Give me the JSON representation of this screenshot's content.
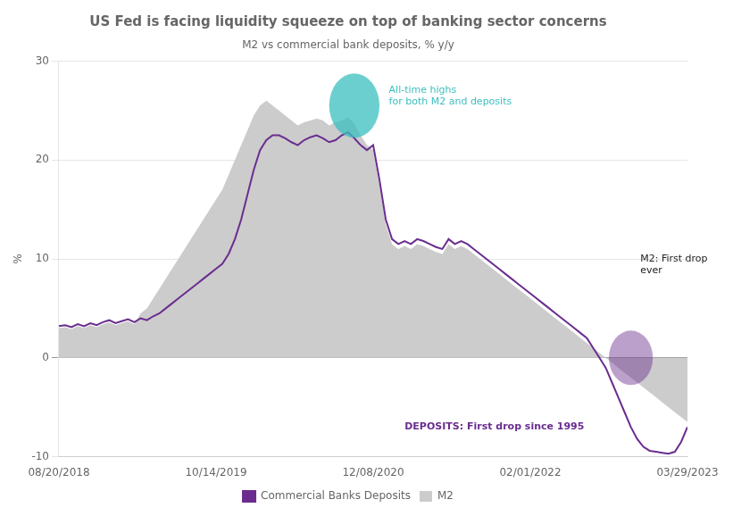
{
  "chart_data": {
    "type": "line",
    "title": "US Fed is facing liquidity squeeze on top of banking sector concerns",
    "subtitle": "M2 vs commercial bank deposits, % y/y",
    "y_label": "%",
    "categories": [
      "08/20/2018",
      null,
      null,
      null,
      null,
      null,
      null,
      null,
      null,
      null,
      null,
      null,
      null,
      null,
      null,
      null,
      null,
      null,
      null,
      null,
      null,
      null,
      null,
      null,
      null,
      "10/14/2019",
      null,
      null,
      null,
      null,
      null,
      null,
      null,
      null,
      null,
      null,
      null,
      null,
      null,
      null,
      null,
      null,
      null,
      null,
      null,
      null,
      null,
      null,
      null,
      null,
      "12/08/2020",
      null,
      null,
      null,
      null,
      null,
      null,
      null,
      null,
      null,
      null,
      null,
      null,
      null,
      null,
      null,
      null,
      null,
      null,
      null,
      null,
      null,
      null,
      null,
      null,
      "02/01/2022",
      null,
      null,
      null,
      null,
      null,
      null,
      null,
      null,
      null,
      null,
      null,
      null,
      null,
      null,
      null,
      null,
      null,
      null,
      null,
      null,
      null,
      null,
      null,
      null,
      "03/29/2023"
    ],
    "series": [
      {
        "name": "Commercial Banks Deposits",
        "type": "line",
        "color": "#6a2d8f",
        "values": [
          3.2,
          3.3,
          3.1,
          3.4,
          3.2,
          3.5,
          3.3,
          3.6,
          3.8,
          3.5,
          3.7,
          3.9,
          3.6,
          4.0,
          3.8,
          4.2,
          4.5,
          5.0,
          5.5,
          6.0,
          6.5,
          7.0,
          7.5,
          8.0,
          8.5,
          9.0,
          9.5,
          10.5,
          12.0,
          14.0,
          16.5,
          19.0,
          21.0,
          22.0,
          22.5,
          22.5,
          22.2,
          21.8,
          21.5,
          22.0,
          22.3,
          22.5,
          22.2,
          21.8,
          22.0,
          22.5,
          22.8,
          22.2,
          21.5,
          21.0,
          21.5,
          18.0,
          14.0,
          12.0,
          11.5,
          11.8,
          11.5,
          12.0,
          11.8,
          11.5,
          11.2,
          11.0,
          12.0,
          11.5,
          11.8,
          11.5,
          11.0,
          10.5,
          10.0,
          9.5,
          9.0,
          8.5,
          8.0,
          7.5,
          7.0,
          6.5,
          6.0,
          5.5,
          5.0,
          4.5,
          4.0,
          3.5,
          3.0,
          2.5,
          2.0,
          1.0,
          0.0,
          -1.0,
          -2.5,
          -4.0,
          -5.5,
          -7.0,
          -8.2,
          -9.0,
          -9.4,
          -9.5,
          -9.6,
          -9.7,
          -9.5,
          -8.5,
          -7.0
        ]
      },
      {
        "name": "M2",
        "type": "area",
        "color": "#cccccc",
        "values": [
          3.0,
          3.1,
          2.9,
          3.2,
          3.0,
          3.3,
          3.1,
          3.4,
          3.6,
          3.3,
          3.5,
          3.7,
          3.4,
          4.5,
          5.0,
          6.0,
          7.0,
          8.0,
          9.0,
          10.0,
          11.0,
          12.0,
          13.0,
          14.0,
          15.0,
          16.0,
          17.0,
          18.5,
          20.0,
          21.5,
          23.0,
          24.5,
          25.5,
          26.0,
          25.5,
          25.0,
          24.5,
          24.0,
          23.5,
          23.8,
          24.0,
          24.2,
          24.0,
          23.5,
          23.8,
          24.0,
          24.3,
          23.7,
          22.5,
          21.5,
          21.0,
          17.5,
          13.5,
          11.5,
          11.0,
          11.3,
          11.0,
          11.5,
          11.3,
          11.0,
          10.7,
          10.5,
          11.5,
          11.0,
          11.3,
          11.0,
          10.5,
          10.0,
          9.5,
          9.0,
          8.5,
          8.0,
          7.5,
          7.0,
          6.5,
          6.0,
          5.5,
          5.0,
          4.5,
          4.0,
          3.5,
          3.0,
          2.5,
          2.0,
          1.5,
          1.0,
          0.5,
          0.0,
          -0.5,
          -1.0,
          -1.5,
          -2.0,
          -2.5,
          -3.0,
          -3.5,
          -4.0,
          -4.5,
          -5.0,
          -5.5,
          -6.0,
          -6.5
        ]
      }
    ],
    "ylim": [
      -10,
      30
    ],
    "yticks": [
      -10,
      0,
      10,
      20,
      30
    ],
    "grid": "y",
    "legend": "bottom",
    "annotations": [
      {
        "text": "All-time highs\nfor both M2 and deposits",
        "color": "#3bbfbf"
      },
      {
        "text": "M2: First drop\never",
        "color": "#222222"
      },
      {
        "text": "DEPOSITS: First drop since 1995",
        "color": "#6a2d8f"
      }
    ]
  }
}
